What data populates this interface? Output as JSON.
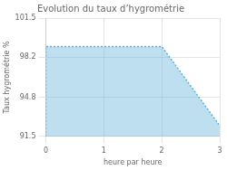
{
  "chart_data": {
    "type": "area",
    "title": "Evolution du taux d’hygrométrie",
    "xlabel": "heure par heure",
    "ylabel": "Taux hygrométrie %",
    "x": [
      0,
      0,
      2,
      3
    ],
    "values": [
      91.5,
      99.1,
      99.1,
      92.4
    ],
    "xlim": [
      0,
      3
    ],
    "ylim": [
      91.5,
      101.5
    ],
    "xticks": [
      0,
      1,
      2,
      3
    ],
    "yticks": [
      91.5,
      94.8,
      98.2,
      101.5
    ],
    "grid": true,
    "color": "#5ab0d8",
    "line_style": "dotted"
  }
}
